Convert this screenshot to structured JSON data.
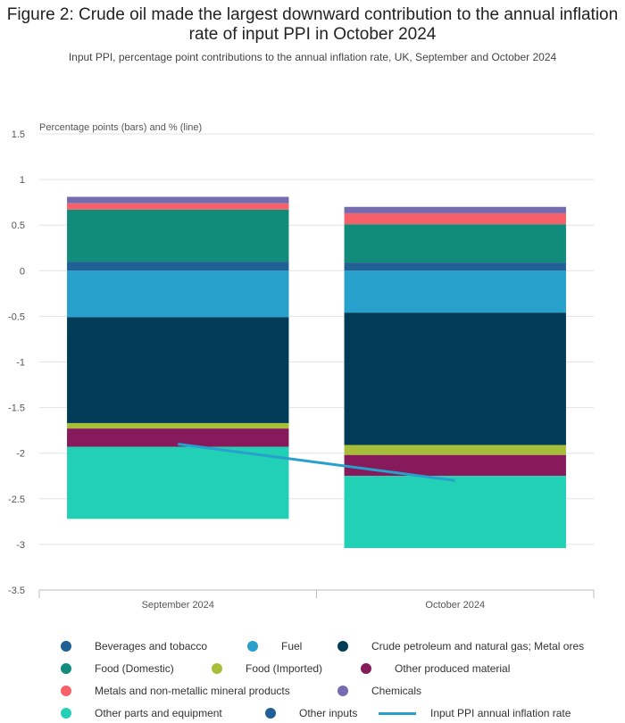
{
  "header": {
    "title": "Figure 2: Crude oil made the largest downward contribution to the annual inflation rate of input PPI in October 2024",
    "subtitle": "Input PPI, percentage point contributions to the annual inflation rate, UK, September and October 2024"
  },
  "chart_data": {
    "type": "bar",
    "stacked": true,
    "title": "Figure 2: Crude oil made the largest downward contribution to the annual inflation rate of input PPI in October 2024",
    "subtitle": "Input PPI, percentage point contributions to the annual inflation rate, UK, September and October 2024",
    "ylabel": "Percentage points (bars) and % (line)",
    "xlabel": "",
    "categories": [
      "September 2024",
      "October 2024"
    ],
    "ylim": [
      -3.5,
      1.5
    ],
    "yticks": [
      1.5,
      1,
      0.5,
      0,
      -0.5,
      -1,
      -1.5,
      -2,
      -2.5,
      -3,
      -3.5
    ],
    "grid": true,
    "legend_position": "bottom",
    "series": [
      {
        "name": "Beverages and tobacco",
        "color": "#206095",
        "values": [
          0.1,
          0.09
        ]
      },
      {
        "name": "Fuel",
        "color": "#27a0cc",
        "values": [
          -0.51,
          -0.46
        ]
      },
      {
        "name": "Crude petroleum and natural gas; Metal ores",
        "color": "#003c57",
        "values": [
          -1.16,
          -1.45
        ]
      },
      {
        "name": "Food (Domestic)",
        "color": "#118c7b",
        "values": [
          0.57,
          0.42
        ]
      },
      {
        "name": "Food (Imported)",
        "color": "#a8bd3a",
        "values": [
          -0.06,
          -0.11
        ]
      },
      {
        "name": "Other produced material",
        "color": "#871a5b",
        "values": [
          -0.2,
          -0.23
        ]
      },
      {
        "name": "Metals and non-metallic mineral products",
        "color": "#f66068",
        "values": [
          0.07,
          0.12
        ]
      },
      {
        "name": "Chemicals",
        "color": "#746cb1",
        "values": [
          0.07,
          0.07
        ]
      },
      {
        "name": "Other parts and equipment",
        "color": "#22d0b6",
        "values": [
          -0.79,
          -0.79
        ]
      },
      {
        "name": "Other inputs",
        "color": "#206095",
        "values": [
          0.0,
          0.0
        ]
      }
    ],
    "line": {
      "name": "Input PPI annual inflation rate",
      "color": "#27a0cc",
      "values": [
        -1.9,
        -2.3
      ]
    }
  }
}
